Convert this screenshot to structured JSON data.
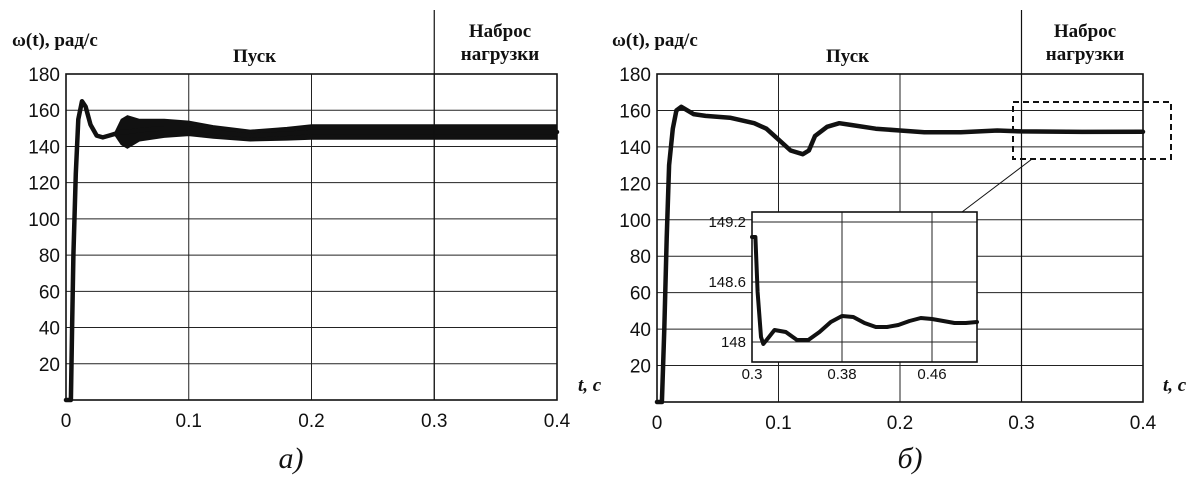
{
  "chart_data": [
    {
      "type": "line",
      "ylabel": "ω(t), рад/с",
      "xlabel": "t, с",
      "caption": "а)",
      "phase_labels": [
        "Пуск",
        "Наброс нагрузки"
      ],
      "phase_boundary_x": 0.3,
      "xlim": [
        0,
        0.4
      ],
      "ylim": [
        0,
        180
      ],
      "xticks": [
        "0",
        "0.1",
        "0.2",
        "0.3",
        "0.4"
      ],
      "yticks": [
        "20",
        "40",
        "60",
        "80",
        "100",
        "120",
        "140",
        "160",
        "180"
      ],
      "grid": true,
      "series": [
        {
          "x": [
            0,
            0.004,
            0.005,
            0.006,
            0.008,
            0.01,
            0.013,
            0.016,
            0.02,
            0.025,
            0.03,
            0.035,
            0.04,
            0.045,
            0.05,
            0.06,
            0.08,
            0.1,
            0.12,
            0.15,
            0.18,
            0.2,
            0.25,
            0.3,
            0.35,
            0.4
          ],
          "y": [
            0,
            0,
            40,
            80,
            125,
            155,
            165,
            162,
            152,
            146,
            145,
            146,
            147,
            148,
            148,
            149,
            150,
            150,
            148,
            146,
            147,
            148,
            148,
            148,
            148,
            148
          ],
          "band": [
            0,
            0,
            0,
            0,
            0,
            0,
            0,
            0,
            0,
            0,
            0,
            0,
            2,
            14,
            18,
            12,
            10,
            8,
            7,
            6,
            7,
            8,
            8,
            8,
            8,
            8
          ]
        }
      ]
    },
    {
      "type": "line",
      "ylabel": "ω(t), рад/с",
      "xlabel": "t, с",
      "caption": "б)",
      "phase_labels": [
        "Пуск",
        "Наброс нагрузки"
      ],
      "phase_boundary_x": 0.3,
      "xlim": [
        0,
        0.4
      ],
      "ylim": [
        0,
        180
      ],
      "xticks": [
        "0",
        "0.1",
        "0.2",
        "0.3",
        "0.4"
      ],
      "yticks": [
        "20",
        "40",
        "60",
        "80",
        "100",
        "120",
        "140",
        "160",
        "180"
      ],
      "grid": true,
      "series": [
        {
          "x": [
            0,
            0.004,
            0.006,
            0.008,
            0.01,
            0.013,
            0.016,
            0.02,
            0.025,
            0.03,
            0.04,
            0.06,
            0.08,
            0.09,
            0.1,
            0.11,
            0.12,
            0.125,
            0.13,
            0.14,
            0.15,
            0.16,
            0.18,
            0.2,
            0.22,
            0.25,
            0.28,
            0.3,
            0.35,
            0.4
          ],
          "y": [
            0,
            0,
            40,
            90,
            130,
            150,
            160,
            162,
            160,
            158,
            157,
            156,
            153,
            150,
            144,
            138,
            136,
            138,
            146,
            151,
            153,
            152,
            150,
            149,
            148,
            148,
            149,
            148.5,
            148.2,
            148.3
          ]
        }
      ],
      "inset": {
        "xlim": [
          0.3,
          0.5
        ],
        "ylim": [
          147.8,
          149.3
        ],
        "xticks": [
          "0.3",
          "0.38",
          "0.46"
        ],
        "yticks": [
          "148",
          "148.6",
          "149.2"
        ],
        "series": [
          {
            "x": [
              0.3,
              0.303,
              0.305,
              0.308,
              0.31,
              0.313,
              0.32,
              0.33,
              0.34,
              0.35,
              0.36,
              0.37,
              0.38,
              0.39,
              0.4,
              0.41,
              0.42,
              0.43,
              0.44,
              0.45,
              0.46,
              0.47,
              0.48,
              0.49,
              0.5
            ],
            "y": [
              149.05,
              149.05,
              148.5,
              148.05,
              147.98,
              148.02,
              148.12,
              148.1,
              148.02,
              148.02,
              148.1,
              148.2,
              148.26,
              148.25,
              148.19,
              148.15,
              148.15,
              148.17,
              148.21,
              148.24,
              148.23,
              148.21,
              148.19,
              148.19,
              148.2
            ]
          }
        ]
      }
    }
  ]
}
